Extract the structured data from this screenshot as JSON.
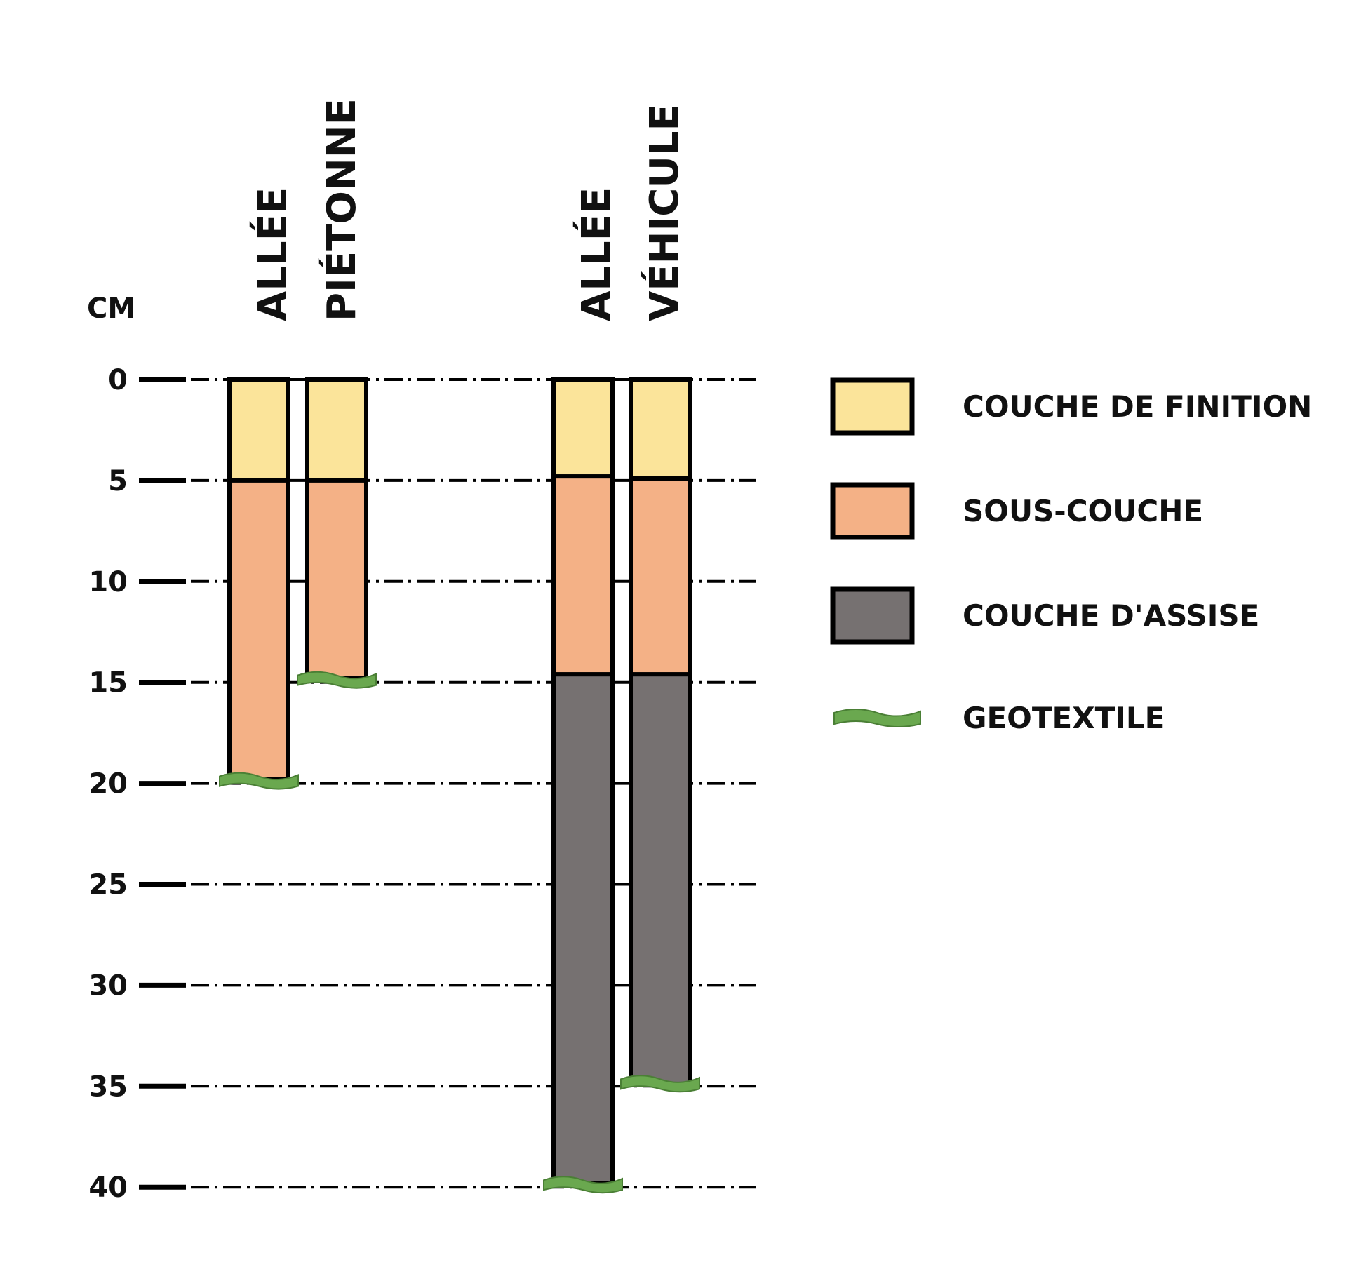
{
  "unit_label": "CM",
  "columns": [
    {
      "label_line1": "ALLÉE",
      "label_line2": "PIÉTONNE",
      "bars": [
        {
          "layers": [
            {
              "type": "finition",
              "from": 0,
              "to": 5
            },
            {
              "type": "sous_couche",
              "from": 5,
              "to": 19.8
            }
          ],
          "geotextile_at": 20
        },
        {
          "layers": [
            {
              "type": "finition",
              "from": 0,
              "to": 5
            },
            {
              "type": "sous_couche",
              "from": 5,
              "to": 14.8
            }
          ],
          "geotextile_at": 15
        }
      ]
    },
    {
      "label_line1": "ALLÉE",
      "label_line2": "VÉHICULE",
      "bars": [
        {
          "layers": [
            {
              "type": "finition",
              "from": 0,
              "to": 4.8
            },
            {
              "type": "sous_couche",
              "from": 4.8,
              "to": 14.6
            },
            {
              "type": "assise",
              "from": 14.6,
              "to": 39.8
            }
          ],
          "geotextile_at": 40
        },
        {
          "layers": [
            {
              "type": "finition",
              "from": 0,
              "to": 4.9
            },
            {
              "type": "sous_couche",
              "from": 4.9,
              "to": 14.6
            },
            {
              "type": "assise",
              "from": 14.6,
              "to": 34.9
            }
          ],
          "geotextile_at": 35
        }
      ]
    }
  ],
  "scale": {
    "ticks": [
      "0",
      "5",
      "10",
      "15",
      "20",
      "25",
      "30",
      "35",
      "40"
    ],
    "tick_values": [
      0,
      5,
      10,
      15,
      20,
      25,
      30,
      35,
      40
    ],
    "max": 40
  },
  "legend": [
    {
      "key": "finition",
      "label": "COUCHE DE FINITION",
      "kind": "box"
    },
    {
      "key": "sous_couche",
      "label": "SOUS-COUCHE",
      "kind": "box"
    },
    {
      "key": "assise",
      "label": "COUCHE D'ASSISE",
      "kind": "box"
    },
    {
      "key": "geotextile",
      "label": "GEOTEXTILE",
      "kind": "wave"
    }
  ],
  "colors": {
    "finition": "#fbe49a",
    "sous_couche": "#f4b186",
    "assise": "#767171",
    "geotextile": "#6aa84f",
    "outline": "#000000"
  }
}
